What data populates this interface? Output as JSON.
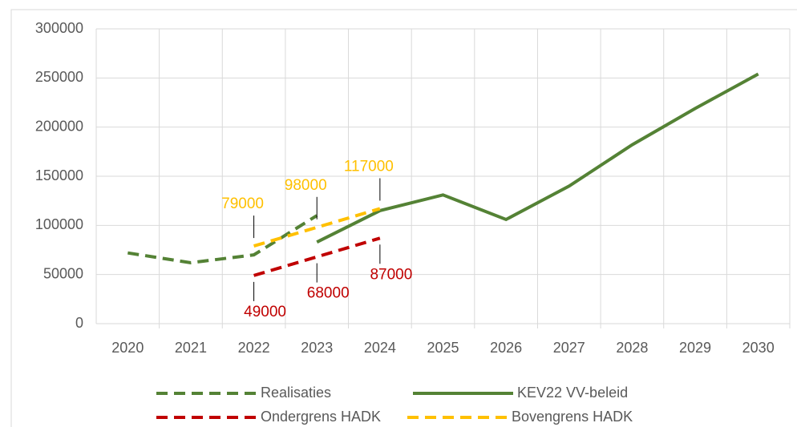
{
  "chart_data": {
    "type": "line",
    "categories": [
      "2020",
      "2021",
      "2022",
      "2023",
      "2024",
      "2025",
      "2026",
      "2027",
      "2028",
      "2029",
      "2030"
    ],
    "series": [
      {
        "name": "Realisaties",
        "color": "#548235",
        "dashed": true,
        "values": [
          72000,
          62000,
          70000,
          110000,
          null,
          null,
          null,
          null,
          null,
          null,
          null
        ]
      },
      {
        "name": "KEV22 VV-beleid",
        "color": "#548235",
        "dashed": false,
        "values": [
          null,
          null,
          null,
          83000,
          115000,
          131000,
          106000,
          140000,
          182000,
          219000,
          254000
        ]
      },
      {
        "name": "Ondergrens HADK",
        "color": "#c00000",
        "dashed": true,
        "label_position": "below",
        "values": [
          null,
          null,
          49000,
          68000,
          87000,
          null,
          null,
          null,
          null,
          null,
          null
        ]
      },
      {
        "name": "Bovengrens HADK",
        "color": "#ffc000",
        "dashed": true,
        "label_position": "above",
        "values": [
          null,
          null,
          79000,
          98000,
          117000,
          null,
          null,
          null,
          null,
          null,
          null
        ]
      }
    ],
    "ylim": [
      0,
      300000
    ],
    "yticks": [
      0,
      50000,
      100000,
      150000,
      200000,
      250000,
      300000
    ],
    "grid": true
  }
}
